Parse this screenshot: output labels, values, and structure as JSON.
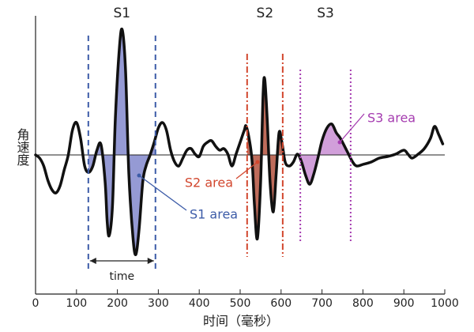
{
  "chart_data": {
    "type": "line",
    "x_label": "时间（毫秒）",
    "y_label": "角速度",
    "xlim": [
      0,
      1000
    ],
    "xticks": [
      0,
      100,
      200,
      300,
      400,
      500,
      600,
      700,
      800,
      900,
      1000
    ],
    "ylim": [
      -17.6,
      17.6
    ],
    "grid": false,
    "color": "#111111",
    "x": [
      0,
      10,
      20,
      30,
      40,
      50,
      60,
      70,
      80,
      90,
      100,
      110,
      120,
      130,
      140,
      150,
      160,
      170,
      175,
      180,
      188,
      195,
      205,
      212,
      220,
      228,
      238,
      245,
      253,
      262,
      270,
      280,
      290,
      300,
      310,
      320,
      330,
      340,
      350,
      360,
      370,
      380,
      390,
      400,
      410,
      420,
      430,
      440,
      450,
      460,
      470,
      480,
      490,
      500,
      510,
      515,
      525,
      530,
      535,
      542,
      550,
      556,
      560,
      566,
      573,
      581,
      588,
      595,
      602,
      610,
      620,
      630,
      640,
      650,
      660,
      670,
      680,
      690,
      700,
      712,
      724,
      735,
      745,
      760,
      775,
      785,
      800,
      820,
      840,
      860,
      880,
      900,
      910,
      920,
      935,
      950,
      965,
      975,
      985,
      995
    ],
    "values": [
      0,
      -0.4,
      -1.4,
      -3.2,
      -4.4,
      -4.8,
      -3.9,
      -1.9,
      0,
      3.1,
      4.1,
      2.1,
      -1.4,
      -2.2,
      -1.4,
      0.6,
      1.3,
      -3.4,
      -8.4,
      -10.2,
      -6.4,
      4.6,
      13.6,
      15.8,
      10.6,
      -2.4,
      -10.4,
      -12.6,
      -9.4,
      -3.4,
      -1.4,
      0,
      1.6,
      3.4,
      4.1,
      3.1,
      0.6,
      -0.9,
      -1.4,
      -0.4,
      0.6,
      0.8,
      0.1,
      -0.2,
      1.1,
      1.6,
      1.8,
      1.1,
      0.6,
      0.8,
      0.1,
      -1.4,
      0.1,
      1.6,
      3.1,
      3.6,
      1.1,
      -1.4,
      -6.4,
      -10.6,
      -3.4,
      7.6,
      9.6,
      4.6,
      -3.4,
      -7.2,
      -2.4,
      2.8,
      1.6,
      -0.9,
      -1.4,
      -0.9,
      0.1,
      -0.9,
      -2.6,
      -3.7,
      -2.4,
      -0.4,
      1.8,
      3.4,
      3.9,
      2.8,
      2.1,
      0.6,
      -0.9,
      -1.4,
      -1.2,
      -0.9,
      -0.4,
      -0.2,
      0.1,
      0.6,
      0.1,
      -0.4,
      0.1,
      0.8,
      2.1,
      3.6,
      2.6,
      1.4
    ],
    "regions": [
      {
        "name": "S1",
        "area_label": "S1 area",
        "start": 129,
        "end": 293,
        "color": "#3d5ca8",
        "fill": "#8388cc",
        "span_label": "time"
      },
      {
        "name": "S2",
        "area_label": "S2 area",
        "start": 517,
        "end": 604,
        "color": "#d2472e",
        "fill": "#b4523e"
      },
      {
        "name": "S3",
        "area_label": "S3 area",
        "start": 647,
        "end": 770,
        "color": "#a53cb0",
        "fill": "#c98ed3"
      }
    ]
  }
}
